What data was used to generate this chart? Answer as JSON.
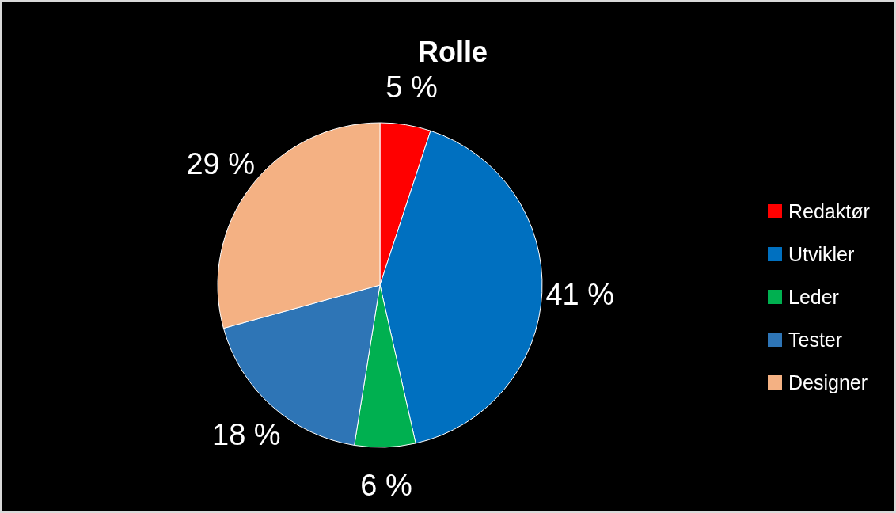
{
  "chart_data": {
    "type": "pie",
    "title": "Rolle",
    "categories": [
      "Redaktør",
      "Utvikler",
      "Leder",
      "Tester",
      "Designer"
    ],
    "values": [
      5,
      41,
      6,
      18,
      29
    ],
    "colors": [
      "#ff0000",
      "#0070c0",
      "#00b050",
      "#2e75b6",
      "#f4b183"
    ],
    "value_labels": [
      "5 %",
      "41 %",
      "6 %",
      "18 %",
      "29 %"
    ],
    "legend": "right"
  }
}
